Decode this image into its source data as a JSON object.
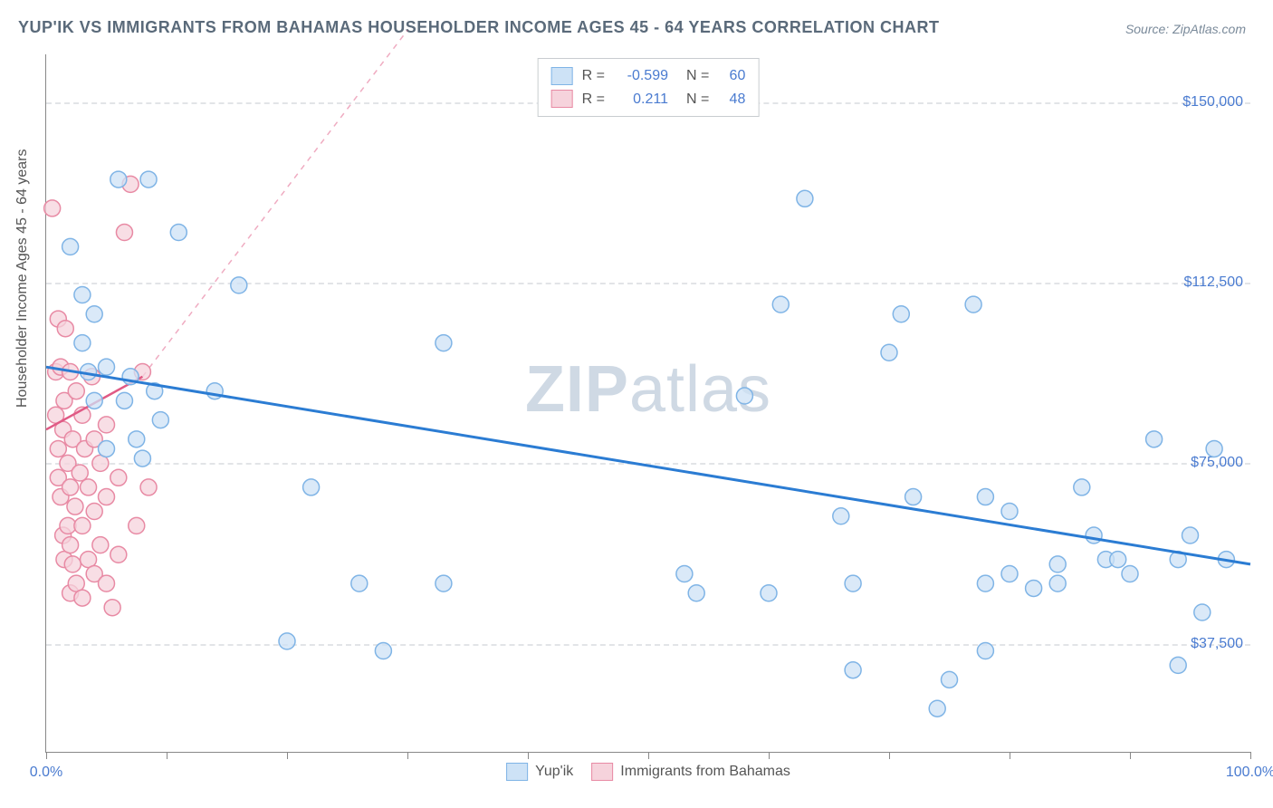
{
  "title": "YUP'IK VS IMMIGRANTS FROM BAHAMAS HOUSEHOLDER INCOME AGES 45 - 64 YEARS CORRELATION CHART",
  "source": "Source: ZipAtlas.com",
  "y_axis_label": "Householder Income Ages 45 - 64 years",
  "watermark": {
    "bold": "ZIP",
    "rest": "atlas"
  },
  "chart": {
    "type": "scatter",
    "xlim": [
      0,
      100
    ],
    "ylim": [
      15000,
      160000
    ],
    "x_ticks": [
      0,
      10,
      20,
      30,
      40,
      50,
      60,
      70,
      80,
      90,
      100
    ],
    "x_tick_labels": {
      "0": "0.0%",
      "100": "100.0%"
    },
    "y_gridlines": [
      37500,
      75000,
      112500,
      150000
    ],
    "y_tick_labels": [
      "$37,500",
      "$75,000",
      "$112,500",
      "$150,000"
    ],
    "background_color": "#ffffff",
    "grid_color": "#e2e4e7",
    "axis_color": "#888888",
    "label_color": "#4a7bd0",
    "marker_radius": 9,
    "marker_stroke_width": 1.5,
    "trend_line_width_main": 3,
    "trend_line_width_proj": 1.5,
    "series": [
      {
        "name": "Yup'ik",
        "fill": "#cde2f6",
        "stroke": "#7fb4e6",
        "trend_stroke": "#2b7cd3",
        "R": "-0.599",
        "N": "60",
        "trend": {
          "x1": 0,
          "y1": 95000,
          "x2": 100,
          "y2": 54000
        },
        "points": [
          [
            2,
            120000
          ],
          [
            3,
            110000
          ],
          [
            3,
            100000
          ],
          [
            3.5,
            94000
          ],
          [
            4,
            106000
          ],
          [
            4,
            88000
          ],
          [
            5,
            95000
          ],
          [
            5,
            78000
          ],
          [
            6,
            134000
          ],
          [
            6.5,
            88000
          ],
          [
            7,
            93000
          ],
          [
            7.5,
            80000
          ],
          [
            8,
            76000
          ],
          [
            8.5,
            134000
          ],
          [
            9,
            90000
          ],
          [
            9.5,
            84000
          ],
          [
            11,
            123000
          ],
          [
            14,
            90000
          ],
          [
            16,
            112000
          ],
          [
            20,
            38000
          ],
          [
            22,
            70000
          ],
          [
            26,
            50000
          ],
          [
            28,
            36000
          ],
          [
            33,
            100000
          ],
          [
            33,
            50000
          ],
          [
            53,
            52000
          ],
          [
            54,
            48000
          ],
          [
            58,
            89000
          ],
          [
            60,
            48000
          ],
          [
            61,
            108000
          ],
          [
            63,
            130000
          ],
          [
            66,
            64000
          ],
          [
            67,
            32000
          ],
          [
            67,
            50000
          ],
          [
            70,
            98000
          ],
          [
            71,
            106000
          ],
          [
            72,
            68000
          ],
          [
            74,
            24000
          ],
          [
            75,
            30000
          ],
          [
            77,
            108000
          ],
          [
            78,
            36000
          ],
          [
            78,
            68000
          ],
          [
            78,
            50000
          ],
          [
            80,
            52000
          ],
          [
            80,
            65000
          ],
          [
            82,
            49000
          ],
          [
            84,
            50000
          ],
          [
            84,
            54000
          ],
          [
            86,
            70000
          ],
          [
            87,
            60000
          ],
          [
            88,
            55000
          ],
          [
            89,
            55000
          ],
          [
            90,
            52000
          ],
          [
            92,
            80000
          ],
          [
            94,
            55000
          ],
          [
            94,
            33000
          ],
          [
            95,
            60000
          ],
          [
            96,
            44000
          ],
          [
            97,
            78000
          ],
          [
            98,
            55000
          ]
        ]
      },
      {
        "name": "Immigrants from Bahamas",
        "fill": "#f6d3dc",
        "stroke": "#e88aa4",
        "trend_stroke": "#e05a85",
        "R": "0.211",
        "N": "48",
        "trend": {
          "x1": 0,
          "y1": 82000,
          "x2": 8,
          "y2": 93000
        },
        "trend_projection": {
          "x1": 8,
          "y1": 93000,
          "x2": 30,
          "y2": 165000
        },
        "points": [
          [
            0.5,
            128000
          ],
          [
            0.8,
            94000
          ],
          [
            0.8,
            85000
          ],
          [
            1,
            105000
          ],
          [
            1,
            78000
          ],
          [
            1,
            72000
          ],
          [
            1.2,
            95000
          ],
          [
            1.2,
            68000
          ],
          [
            1.4,
            82000
          ],
          [
            1.4,
            60000
          ],
          [
            1.5,
            88000
          ],
          [
            1.5,
            55000
          ],
          [
            1.6,
            103000
          ],
          [
            1.8,
            75000
          ],
          [
            1.8,
            62000
          ],
          [
            2,
            94000
          ],
          [
            2,
            70000
          ],
          [
            2,
            58000
          ],
          [
            2,
            48000
          ],
          [
            2.2,
            80000
          ],
          [
            2.2,
            54000
          ],
          [
            2.4,
            66000
          ],
          [
            2.5,
            90000
          ],
          [
            2.5,
            50000
          ],
          [
            2.8,
            73000
          ],
          [
            3,
            85000
          ],
          [
            3,
            62000
          ],
          [
            3,
            47000
          ],
          [
            3.2,
            78000
          ],
          [
            3.5,
            70000
          ],
          [
            3.5,
            55000
          ],
          [
            3.8,
            93000
          ],
          [
            4,
            80000
          ],
          [
            4,
            65000
          ],
          [
            4,
            52000
          ],
          [
            4.5,
            75000
          ],
          [
            4.5,
            58000
          ],
          [
            5,
            83000
          ],
          [
            5,
            68000
          ],
          [
            5,
            50000
          ],
          [
            5.5,
            45000
          ],
          [
            6,
            72000
          ],
          [
            6,
            56000
          ],
          [
            6.5,
            123000
          ],
          [
            7,
            133000
          ],
          [
            7.5,
            62000
          ],
          [
            8,
            94000
          ],
          [
            8.5,
            70000
          ]
        ]
      }
    ],
    "legend_bottom": [
      {
        "label": "Yup'ik",
        "fill": "#cde2f6",
        "stroke": "#7fb4e6"
      },
      {
        "label": "Immigrants from Bahamas",
        "fill": "#f6d3dc",
        "stroke": "#e88aa4"
      }
    ]
  }
}
